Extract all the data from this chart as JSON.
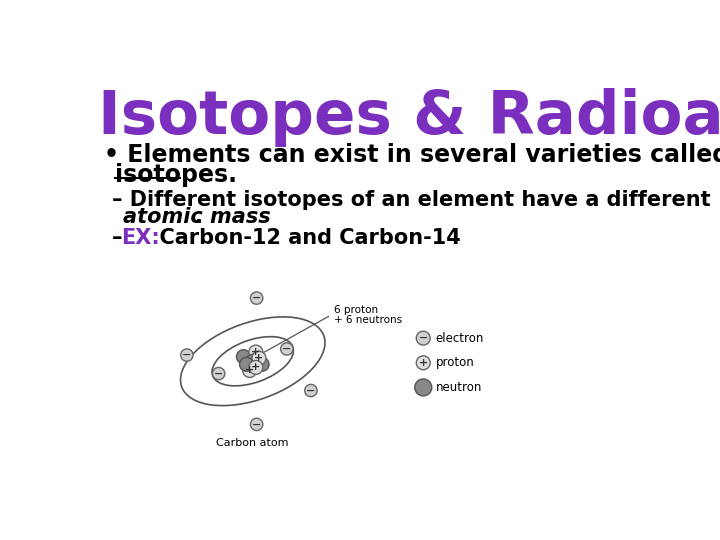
{
  "title": "Isotopes & Radioactive Decay",
  "title_color": "#7B2FBE",
  "title_fontsize": 44,
  "background_color": "#ffffff",
  "text_color": "#000000",
  "sub2_ex_color": "#7B2FBE",
  "bullet1_line1": "• Elements can exist in several varieties called",
  "bullet1_line2": "isotopes.",
  "sub1_line1": "– Different isotopes of an element have a different",
  "sub1_line2_italic": "atomic mass",
  "sub1_line2_rest": ".",
  "sub2_dash": "– ",
  "sub2_ex": "EX:",
  "sub2_rest": "  Carbon-12 and Carbon-14",
  "atom_label": "Carbon atom",
  "nucleus_label_line1": "6 proton",
  "nucleus_label_line2": "+ 6 neutrons",
  "legend_electron": "electron",
  "legend_proton": "proton",
  "legend_neutron": "neutron",
  "bullet_fontsize": 17,
  "sub_fontsize": 15
}
